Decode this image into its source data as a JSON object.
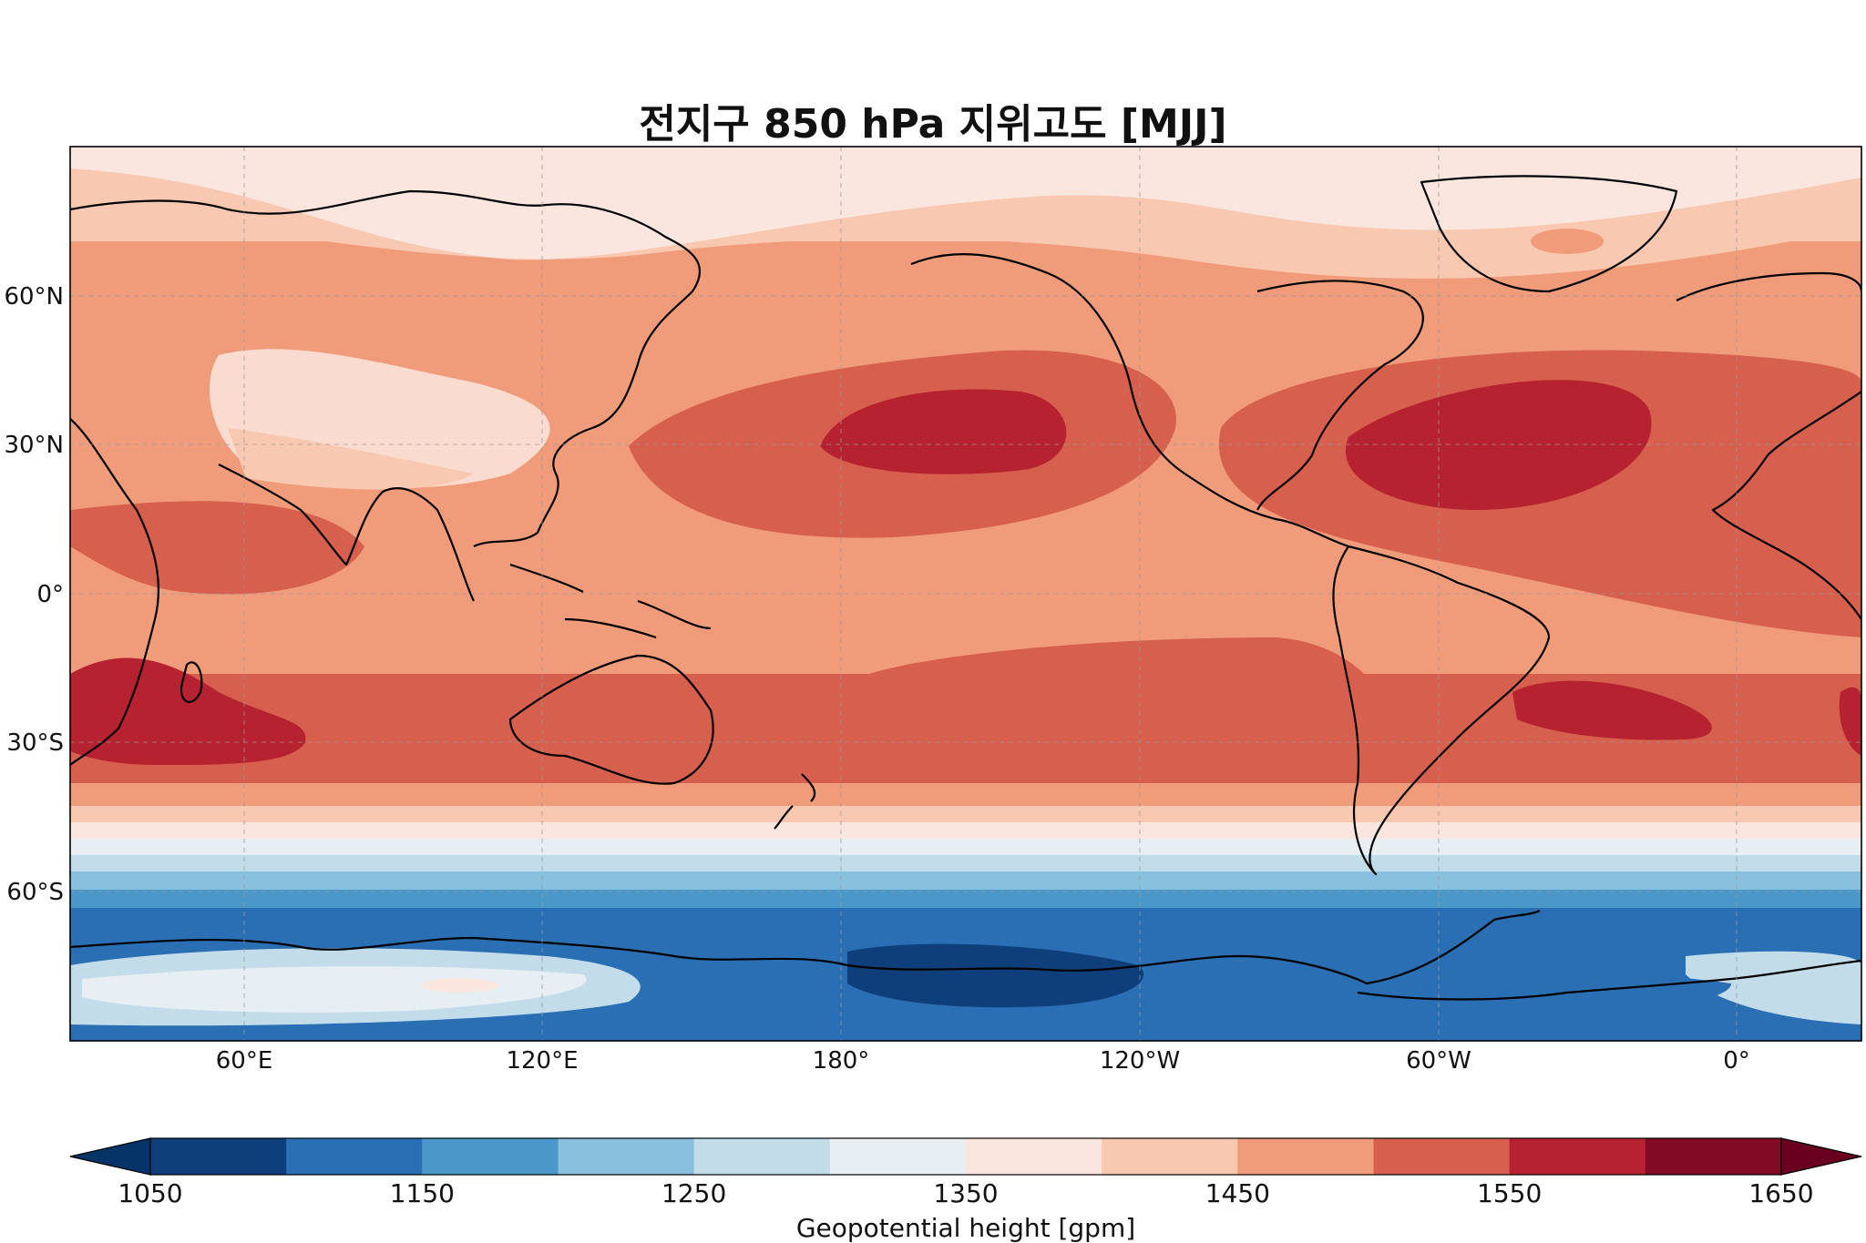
{
  "title": "전지구 850 hPa 지위고도 [MJJ]",
  "map": {
    "type": "filled-contour",
    "projection": "PlateCarree",
    "central_longitude": 180,
    "extent": {
      "lon_min": 30,
      "lon_max": 390,
      "lat_min": -90,
      "lat_max": 90
    },
    "gridlines": true,
    "lat_ticks": [
      "60°N",
      "30°N",
      "0°",
      "30°S",
      "60°S"
    ],
    "lon_ticks": [
      "60°E",
      "120°E",
      "180°",
      "120°W",
      "60°W",
      "0°"
    ],
    "coastlines": true
  },
  "colorbar": {
    "label": "Geopotential height [gpm]",
    "tick_labels": [
      "1050",
      "1150",
      "1250",
      "1350",
      "1450",
      "1550",
      "1650"
    ],
    "levels": [
      1050,
      1100,
      1150,
      1200,
      1250,
      1300,
      1350,
      1400,
      1450,
      1500,
      1550,
      1600,
      1650
    ],
    "colors": [
      "#0f3f7a",
      "#2a6fb3",
      "#4a98c9",
      "#88c0dd",
      "#c2dde9",
      "#e7eff4",
      "#fbe6df",
      "#f9c8b0",
      "#f09c7b",
      "#d6604d",
      "#b6222f",
      "#810a24"
    ],
    "extend": "both",
    "under_color": "#073468",
    "over_color": "#6a0020"
  },
  "colors": {
    "pole_south": "#e6eff5",
    "subtropics": "#d6604d",
    "highs": "#b6222f",
    "coastline": "#000000"
  }
}
